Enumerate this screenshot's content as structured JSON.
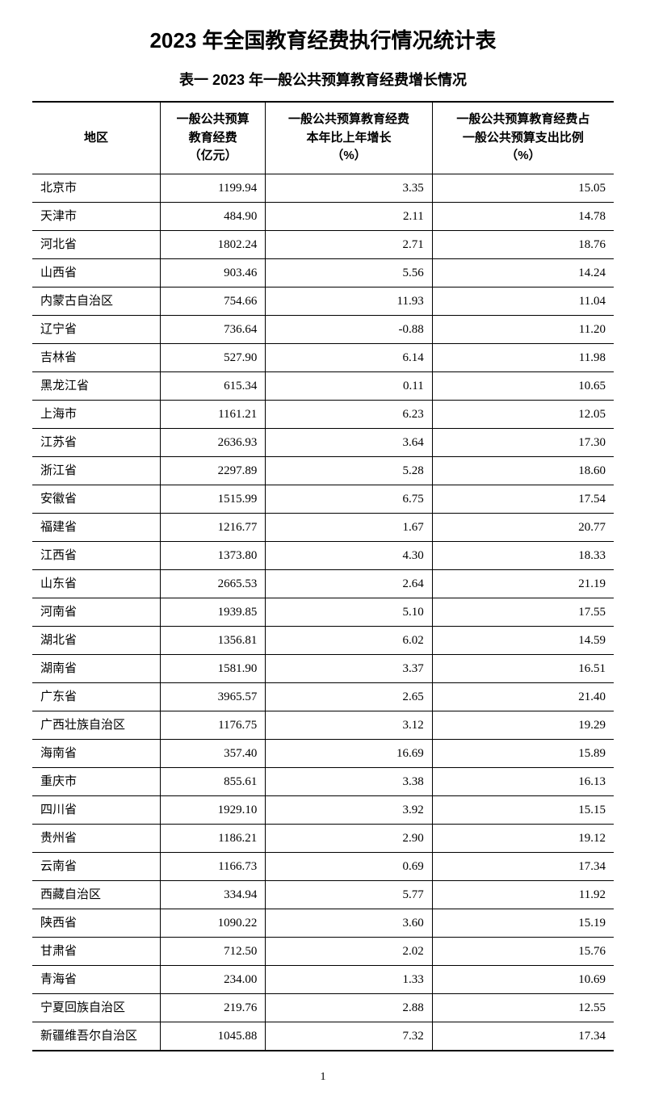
{
  "title": "2023 年全国教育经费执行情况统计表",
  "subtitle": "表一   2023 年一般公共预算教育经费增长情况",
  "columns": [
    "地区",
    "一般公共预算\n教育经费\n（亿元）",
    "一般公共预算教育经费\n本年比上年增长\n（%）",
    "一般公共预算教育经费占\n一般公共预算支出比例\n（%）"
  ],
  "rows": [
    [
      "北京市",
      "1199.94",
      "3.35",
      "15.05"
    ],
    [
      "天津市",
      "484.90",
      "2.11",
      "14.78"
    ],
    [
      "河北省",
      "1802.24",
      "2.71",
      "18.76"
    ],
    [
      "山西省",
      "903.46",
      "5.56",
      "14.24"
    ],
    [
      "内蒙古自治区",
      "754.66",
      "11.93",
      "11.04"
    ],
    [
      "辽宁省",
      "736.64",
      "-0.88",
      "11.20"
    ],
    [
      "吉林省",
      "527.90",
      "6.14",
      "11.98"
    ],
    [
      "黑龙江省",
      "615.34",
      "0.11",
      "10.65"
    ],
    [
      "上海市",
      "1161.21",
      "6.23",
      "12.05"
    ],
    [
      "江苏省",
      "2636.93",
      "3.64",
      "17.30"
    ],
    [
      "浙江省",
      "2297.89",
      "5.28",
      "18.60"
    ],
    [
      "安徽省",
      "1515.99",
      "6.75",
      "17.54"
    ],
    [
      "福建省",
      "1216.77",
      "1.67",
      "20.77"
    ],
    [
      "江西省",
      "1373.80",
      "4.30",
      "18.33"
    ],
    [
      "山东省",
      "2665.53",
      "2.64",
      "21.19"
    ],
    [
      "河南省",
      "1939.85",
      "5.10",
      "17.55"
    ],
    [
      "湖北省",
      "1356.81",
      "6.02",
      "14.59"
    ],
    [
      "湖南省",
      "1581.90",
      "3.37",
      "16.51"
    ],
    [
      "广东省",
      "3965.57",
      "2.65",
      "21.40"
    ],
    [
      "广西壮族自治区",
      "1176.75",
      "3.12",
      "19.29"
    ],
    [
      "海南省",
      "357.40",
      "16.69",
      "15.89"
    ],
    [
      "重庆市",
      "855.61",
      "3.38",
      "16.13"
    ],
    [
      "四川省",
      "1929.10",
      "3.92",
      "15.15"
    ],
    [
      "贵州省",
      "1186.21",
      "2.90",
      "19.12"
    ],
    [
      "云南省",
      "1166.73",
      "0.69",
      "17.34"
    ],
    [
      "西藏自治区",
      "334.94",
      "5.77",
      "11.92"
    ],
    [
      "陕西省",
      "1090.22",
      "3.60",
      "15.19"
    ],
    [
      "甘肃省",
      "712.50",
      "2.02",
      "15.76"
    ],
    [
      "青海省",
      "234.00",
      "1.33",
      "10.69"
    ],
    [
      "宁夏回族自治区",
      "219.76",
      "2.88",
      "12.55"
    ],
    [
      "新疆维吾尔自治区",
      "1045.88",
      "7.32",
      "17.34"
    ]
  ],
  "page_number": "1",
  "style": {
    "background_color": "#ffffff",
    "text_color": "#000000",
    "border_color": "#000000",
    "title_fontsize": 26,
    "subtitle_fontsize": 18,
    "body_fontsize": 15,
    "col_align": [
      "left",
      "right",
      "right",
      "right"
    ]
  }
}
